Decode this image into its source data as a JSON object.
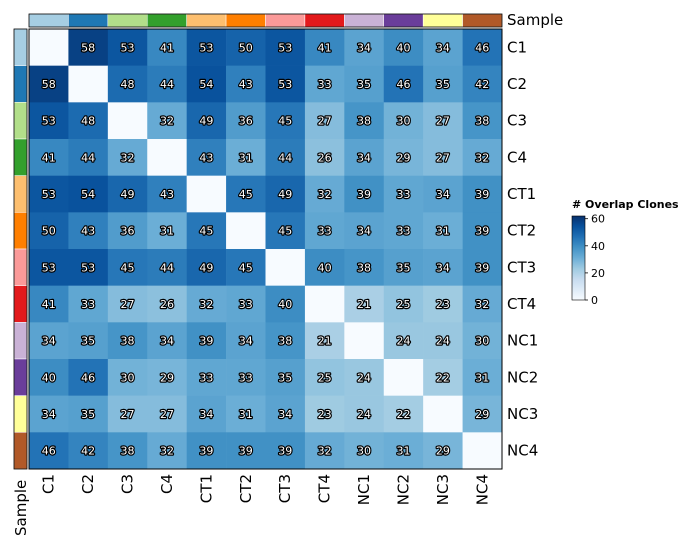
{
  "chart_data": {
    "type": "heatmap",
    "annotation_label": "Sample",
    "categories": [
      "C1",
      "C2",
      "C3",
      "C4",
      "CT1",
      "CT2",
      "CT3",
      "CT4",
      "NC1",
      "NC2",
      "NC3",
      "NC4"
    ],
    "sample_colors": [
      "#a6cee3",
      "#1f78b4",
      "#b2df8a",
      "#33a02c",
      "#fdbf6f",
      "#ff7f00",
      "#fb9a99",
      "#e31a1c",
      "#cab2d6",
      "#6a3d9a",
      "#ffff99",
      "#b15928"
    ],
    "values": [
      [
        null,
        58,
        53,
        41,
        53,
        50,
        53,
        41,
        34,
        40,
        34,
        46
      ],
      [
        58,
        null,
        48,
        44,
        54,
        43,
        53,
        33,
        35,
        46,
        35,
        42
      ],
      [
        53,
        48,
        null,
        32,
        49,
        36,
        45,
        27,
        38,
        30,
        27,
        38
      ],
      [
        41,
        44,
        32,
        null,
        43,
        31,
        44,
        26,
        34,
        29,
        27,
        32
      ],
      [
        53,
        54,
        49,
        43,
        null,
        45,
        49,
        32,
        39,
        33,
        34,
        39
      ],
      [
        50,
        43,
        36,
        31,
        45,
        null,
        45,
        33,
        34,
        33,
        31,
        39
      ],
      [
        53,
        53,
        45,
        44,
        49,
        45,
        null,
        40,
        38,
        35,
        34,
        39
      ],
      [
        41,
        33,
        27,
        26,
        32,
        33,
        40,
        null,
        21,
        25,
        23,
        32
      ],
      [
        34,
        35,
        38,
        34,
        39,
        34,
        38,
        21,
        null,
        24,
        24,
        30
      ],
      [
        40,
        46,
        30,
        29,
        33,
        33,
        35,
        25,
        24,
        null,
        22,
        31
      ],
      [
        34,
        35,
        27,
        27,
        34,
        31,
        34,
        23,
        24,
        22,
        null,
        29
      ],
      [
        46,
        42,
        38,
        32,
        39,
        39,
        39,
        32,
        30,
        31,
        29,
        null
      ]
    ],
    "legend": {
      "title": "# Overlap Clones",
      "ticks": [
        0,
        20,
        40,
        60
      ],
      "range": [
        0,
        62
      ],
      "colors": [
        "#f7fbff",
        "#deebf7",
        "#c6dbef",
        "#9ecae1",
        "#6baed6",
        "#4292c6",
        "#2171b5",
        "#08519c",
        "#08306b"
      ]
    }
  }
}
